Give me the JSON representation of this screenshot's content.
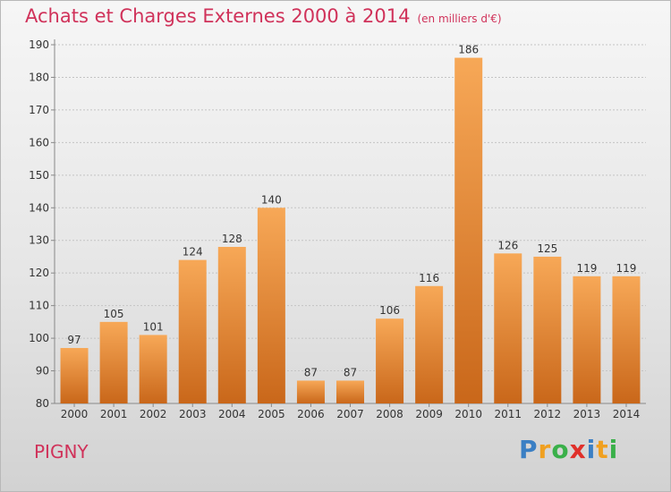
{
  "header": {
    "title": "Achats et Charges Externes 2000 à 2014",
    "subtitle": "(en milliers d'€)"
  },
  "footer": {
    "commune": "PIGNY",
    "logo_letters": [
      "P",
      "r",
      "o",
      "x",
      "i",
      "t",
      "i"
    ],
    "logo_colors": [
      "#3a7fc4",
      "#f0a020",
      "#3ab04a",
      "#e0302a",
      "#3a7fc4",
      "#f0a020",
      "#3ab04a"
    ]
  },
  "chart_data": {
    "type": "bar",
    "title": "Achats et Charges Externes 2000 à 2014",
    "categories": [
      "2000",
      "2001",
      "2002",
      "2003",
      "2004",
      "2005",
      "2006",
      "2007",
      "2008",
      "2009",
      "2010",
      "2011",
      "2012",
      "2013",
      "2014"
    ],
    "values": [
      97,
      105,
      101,
      124,
      128,
      140,
      87,
      87,
      106,
      116,
      186,
      126,
      125,
      119,
      119
    ],
    "ylim": [
      80,
      190
    ],
    "yticks": [
      80,
      90,
      100,
      110,
      120,
      130,
      140,
      150,
      160,
      170,
      180,
      190
    ],
    "grid": "horizontal-dashed",
    "bar_color_top": "#f7a857",
    "bar_color_bottom": "#c9671a"
  }
}
